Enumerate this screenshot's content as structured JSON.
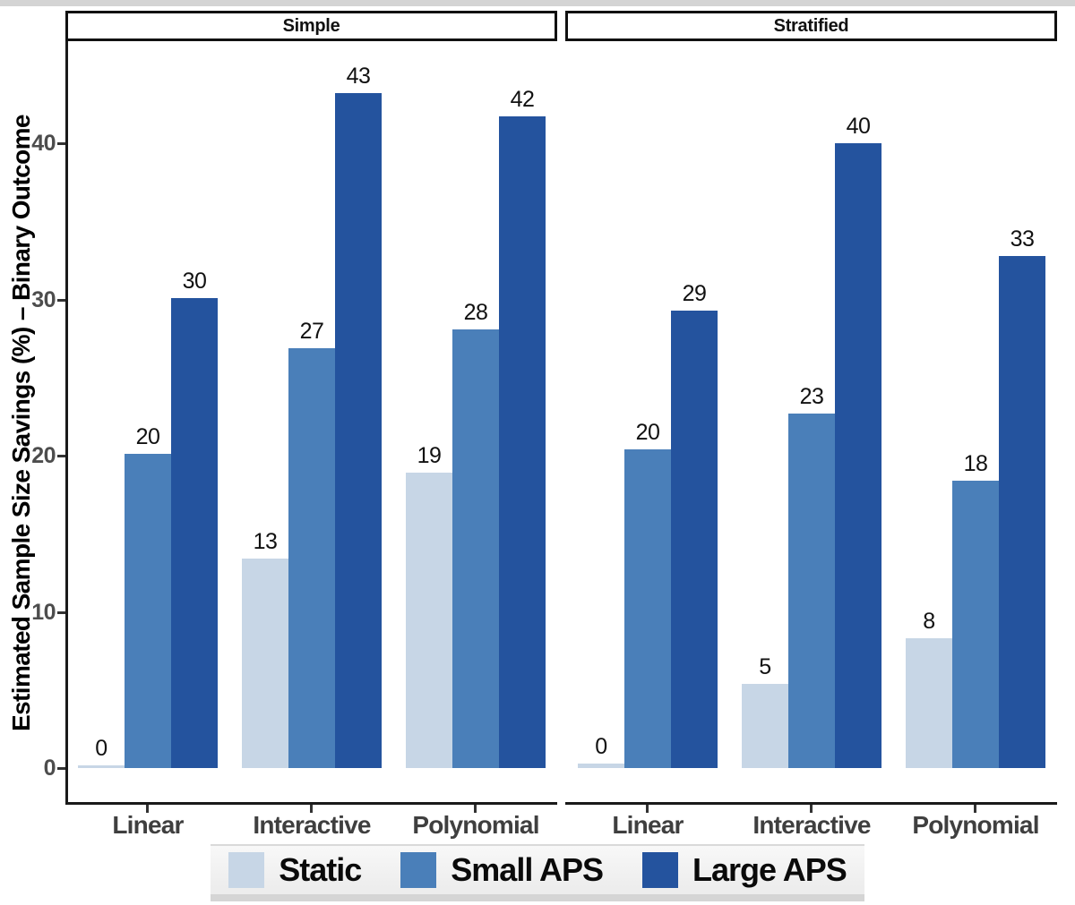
{
  "window": {
    "top_strip_color": "#d4d4d4"
  },
  "chart_data": {
    "type": "bar",
    "title": "",
    "ylabel": "Estimated Sample Size Savings (%) – Binary Outcome",
    "xlabel": "",
    "facet_labels": [
      "Simple",
      "Stratified"
    ],
    "categories": [
      "Linear",
      "Interactive",
      "Polynomial"
    ],
    "series_names": [
      "Static",
      "Small APS",
      "Large APS"
    ],
    "facets": [
      {
        "label": "Simple",
        "series": [
          {
            "name": "Static",
            "color": "#c7d6e6",
            "values": [
              0.15,
              13.4,
              18.9
            ],
            "bar_labels": [
              "0",
              "13",
              "19"
            ]
          },
          {
            "name": "Small APS",
            "color": "#4a7fb9",
            "values": [
              20.1,
              26.9,
              28.1
            ],
            "bar_labels": [
              "20",
              "27",
              "28"
            ]
          },
          {
            "name": "Large APS",
            "color": "#24539e",
            "values": [
              30.1,
              43.2,
              41.7
            ],
            "bar_labels": [
              "30",
              "43",
              "42"
            ]
          }
        ]
      },
      {
        "label": "Stratified",
        "series": [
          {
            "name": "Static",
            "color": "#c7d6e6",
            "values": [
              0.3,
              5.4,
              8.3
            ],
            "bar_labels": [
              "0",
              "5",
              "8"
            ]
          },
          {
            "name": "Small APS",
            "color": "#4a7fb9",
            "values": [
              20.4,
              22.7,
              18.4
            ],
            "bar_labels": [
              "20",
              "23",
              "18"
            ]
          },
          {
            "name": "Large APS",
            "color": "#24539e",
            "values": [
              29.3,
              40.0,
              32.8
            ],
            "bar_labels": [
              "29",
              "40",
              "33"
            ]
          }
        ]
      }
    ],
    "y_axis": {
      "ticks": [
        0,
        10,
        20,
        30,
        40
      ],
      "range": [
        -2.3,
        46.6
      ],
      "grid": false
    },
    "legend": {
      "position": "bottom",
      "items": [
        {
          "label": "Static",
          "color": "#c7d6e6"
        },
        {
          "label": "Small APS",
          "color": "#4a7fb9"
        },
        {
          "label": "Large APS",
          "color": "#24539e"
        }
      ]
    }
  }
}
